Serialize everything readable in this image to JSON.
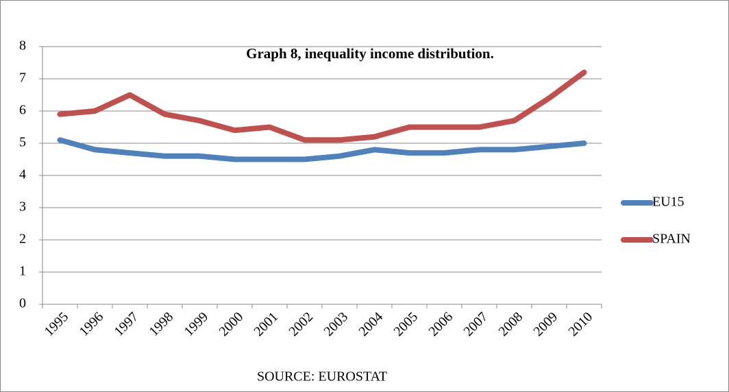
{
  "chart_data": {
    "type": "line",
    "title": "Graph 8, inequality income distribution.",
    "x_label": "SOURCE: EUROSTAT",
    "categories": [
      "1995",
      "1996",
      "1997",
      "1998",
      "1999",
      "2000",
      "2001",
      "2002",
      "2003",
      "2004",
      "2005",
      "2006",
      "2007",
      "2008",
      "2009",
      "2010"
    ],
    "series": [
      {
        "name": "EU15",
        "color": "#4f81bd",
        "values": [
          5.1,
          4.8,
          4.7,
          4.6,
          4.6,
          4.5,
          4.5,
          4.5,
          4.6,
          4.8,
          4.7,
          4.7,
          4.8,
          4.8,
          4.9,
          5.0
        ]
      },
      {
        "name": "SPAIN",
        "color": "#c0504d",
        "values": [
          5.9,
          6.0,
          6.5,
          5.9,
          5.7,
          5.4,
          5.5,
          5.1,
          5.1,
          5.2,
          5.5,
          5.5,
          5.5,
          5.7,
          6.4,
          7.2
        ]
      }
    ],
    "ylim": [
      0,
      8
    ],
    "yticks": [
      0,
      1,
      2,
      3,
      4,
      5,
      6,
      7,
      8
    ],
    "grid": true,
    "legend": "right"
  }
}
